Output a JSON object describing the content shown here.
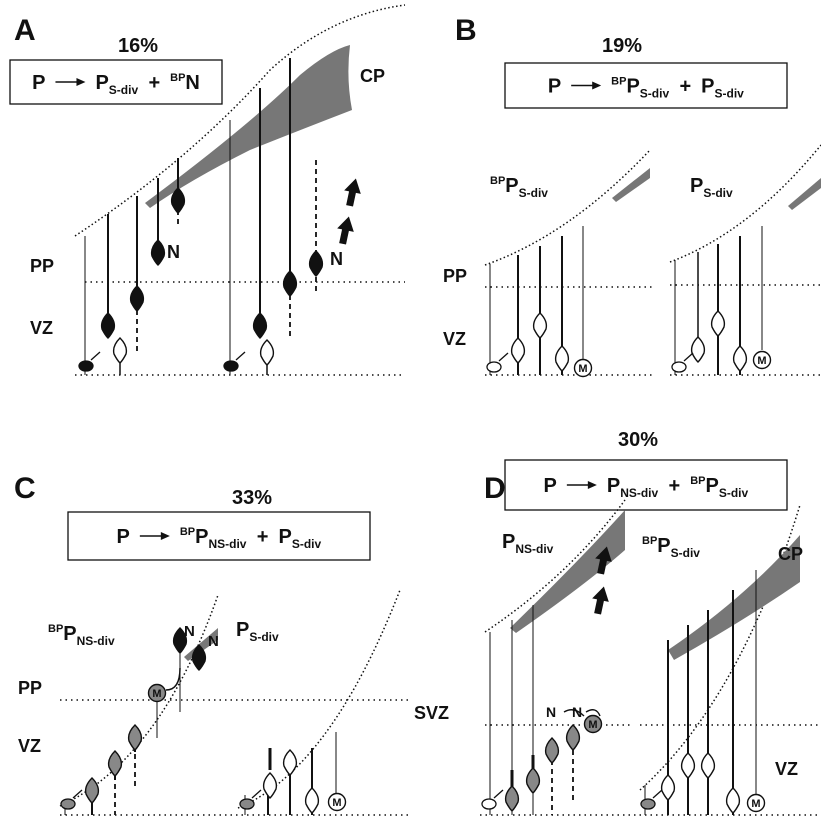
{
  "panels": [
    {
      "label": "A",
      "percent": "16%",
      "equation": [
        {
          "main": "P"
        },
        {
          "main": "P",
          "sub": "S-div"
        },
        {
          "main": "+"
        },
        {
          "sup": "BP",
          "main": "N"
        }
      ],
      "labels": [
        "CP",
        "PP",
        "VZ",
        "N",
        "N"
      ],
      "subpanels": [],
      "cell_labels": []
    },
    {
      "label": "B",
      "percent": "19%",
      "equation": [
        {
          "main": "P"
        },
        {
          "sup": "BP",
          "main": "P",
          "sub": "S-div"
        },
        {
          "main": "+"
        },
        {
          "main": "P",
          "sub": "S-div"
        }
      ],
      "labels": [
        "PP",
        "VZ"
      ],
      "subpanels": [
        {
          "sup": "BP",
          "main": "P",
          "sub": "S-div"
        },
        {
          "main": "P",
          "sub": "S-div"
        }
      ],
      "cell_labels": [
        "M",
        "M"
      ]
    },
    {
      "label": "C",
      "percent": "33%",
      "equation": [
        {
          "main": "P"
        },
        {
          "sup": "BP",
          "main": "P",
          "sub": "NS-div"
        },
        {
          "main": "+"
        },
        {
          "main": "P",
          "sub": "S-div"
        }
      ],
      "labels": [
        "PP",
        "VZ",
        "N",
        "N"
      ],
      "subpanels": [
        {
          "sup": "BP",
          "main": "P",
          "sub": "NS-div"
        },
        {
          "main": "P",
          "sub": "S-div"
        }
      ],
      "cell_labels": [
        "M",
        "M"
      ]
    },
    {
      "label": "D",
      "percent": "30%",
      "equation": [
        {
          "main": "P"
        },
        {
          "main": "P",
          "sub": "NS-div"
        },
        {
          "main": "+"
        },
        {
          "sup": "BP",
          "main": "P",
          "sub": "S-div"
        }
      ],
      "labels": [
        "SVZ",
        "VZ",
        "CP",
        "N",
        "N"
      ],
      "subpanels": [
        {
          "main": "P",
          "sub": "NS-div"
        },
        {
          "sup": "BP",
          "main": "P",
          "sub": "S-div"
        }
      ],
      "cell_labels": [
        "M",
        "M"
      ]
    }
  ]
}
